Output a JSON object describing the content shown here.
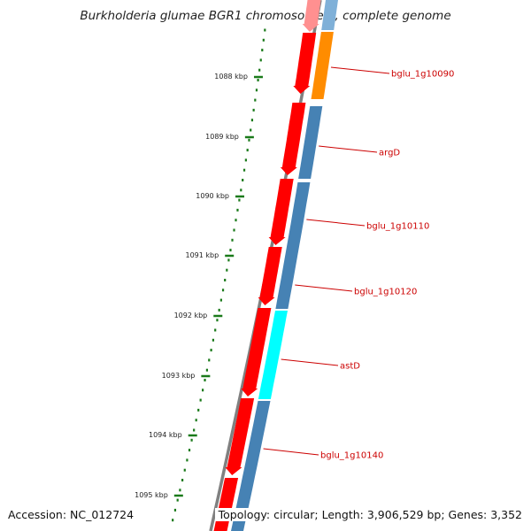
{
  "title": "Burkholderia glumae BGR1 chromosome 1, complete genome",
  "accession": "Accession: NC_012724",
  "topology": "Topology: circular; Length: 3,906,529 bp; Genes: 3,352",
  "ticks": [
    {
      "label": "1088 kbp"
    },
    {
      "label": "1089 kbp"
    },
    {
      "label": "1090 kbp"
    },
    {
      "label": "1091 kbp"
    },
    {
      "label": "1092 kbp"
    },
    {
      "label": "1093 kbp"
    },
    {
      "label": "1094 kbp"
    },
    {
      "label": "1095 kbp"
    }
  ],
  "genes": [
    {
      "label": "bglu_1g10090",
      "color": "#ff8c00"
    },
    {
      "label": "argD",
      "color": "#4682b4"
    },
    {
      "label": "bglu_1g10110",
      "color": "#4682b4"
    },
    {
      "label": "bglu_1g10120",
      "color": "#4682b4"
    },
    {
      "label": "astD",
      "color": "#00ffff"
    },
    {
      "label": "bglu_1g10140",
      "color": "#4682b4"
    }
  ],
  "colors": {
    "forward_track": "#ff0000",
    "backbone": "#808080",
    "tick": "#1a7a1a",
    "label": "#cc0000"
  }
}
